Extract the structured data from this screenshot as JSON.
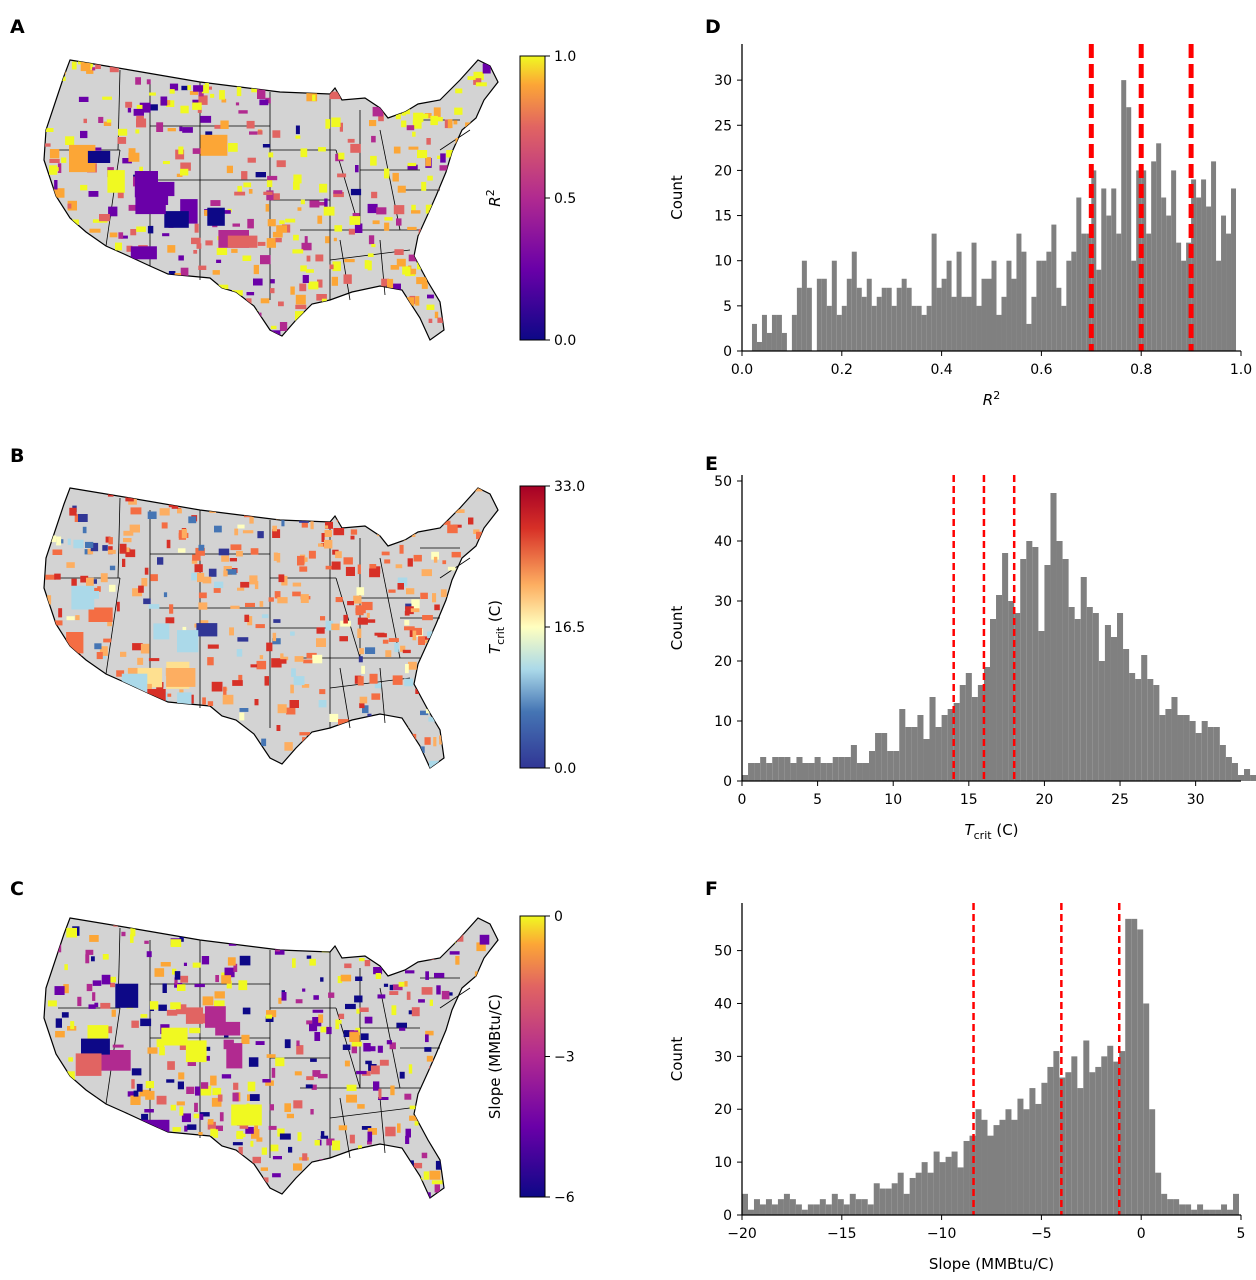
{
  "panels": {
    "A": {
      "letter": "A",
      "colorbar_label": "R²",
      "ticks": [
        "1.0",
        "0.5",
        "0.0"
      ],
      "cmap": "plasma",
      "vmin": 0.0,
      "vmax": 1.0
    },
    "B": {
      "letter": "B",
      "colorbar_label": "T_crit (C)",
      "ticks": [
        "33.0",
        "16.5",
        "0.0"
      ],
      "cmap": "RdYlBu_r",
      "vmin": 0.0,
      "vmax": 33.0
    },
    "C": {
      "letter": "C",
      "colorbar_label": "Slope (MMBtu/C)",
      "ticks": [
        "0",
        "−3",
        "−6"
      ],
      "cmap": "plasma",
      "vmin": -6,
      "vmax": 0
    }
  },
  "colors": {
    "bars": "#808080",
    "lines": "#ff0000",
    "land": "#d3d3d3",
    "border": "#000000"
  },
  "chart_data": [
    {
      "panel": "D",
      "type": "bar",
      "xlabel": "R²",
      "ylabel": "Count",
      "xlim": [
        0.0,
        1.0
      ],
      "ylim": [
        0,
        34
      ],
      "xticks": [
        "0.0",
        "0.2",
        "0.4",
        "0.6",
        "0.8",
        "1.0"
      ],
      "yticks": [
        "0",
        "5",
        "10",
        "15",
        "20",
        "25",
        "30"
      ],
      "bin_start": 0.0,
      "bin_width": 0.01,
      "counts": [
        0,
        0,
        3,
        1,
        4,
        2,
        4,
        4,
        2,
        0,
        4,
        7,
        10,
        7,
        0,
        8,
        8,
        5,
        10,
        4,
        5,
        8,
        11,
        7,
        6,
        8,
        5,
        6,
        7,
        7,
        5,
        7,
        8,
        7,
        5,
        5,
        4,
        5,
        13,
        7,
        8,
        10,
        6,
        11,
        6,
        6,
        12,
        5,
        8,
        8,
        10,
        4,
        6,
        10,
        8,
        13,
        11,
        3,
        6,
        10,
        10,
        11,
        14,
        7,
        5,
        10,
        11,
        17,
        13,
        13,
        20,
        9,
        18,
        15,
        18,
        13,
        30,
        27,
        10,
        20,
        20,
        13,
        21,
        23,
        17,
        15,
        20,
        12,
        10,
        12,
        19,
        17,
        19,
        16,
        21,
        10,
        15,
        13,
        18,
        0
      ],
      "vlines": [
        0.7,
        0.8,
        0.9
      ],
      "vline_style": "thick"
    },
    {
      "panel": "E",
      "type": "bar",
      "xlabel": "T_crit (C)",
      "ylabel": "Count",
      "xlim": [
        0,
        33
      ],
      "ylim": [
        0,
        51
      ],
      "xticks": [
        "0",
        "5",
        "10",
        "15",
        "20",
        "25",
        "30"
      ],
      "yticks": [
        "0",
        "10",
        "20",
        "30",
        "40",
        "50"
      ],
      "bin_start": 0,
      "bin_width": 0.4,
      "counts": [
        1,
        3,
        3,
        4,
        3,
        4,
        4,
        4,
        3,
        4,
        3,
        3,
        4,
        3,
        3,
        4,
        4,
        4,
        6,
        3,
        3,
        5,
        8,
        8,
        5,
        5,
        12,
        9,
        9,
        11,
        7,
        14,
        9,
        11,
        12,
        13,
        16,
        18,
        14,
        16,
        19,
        27,
        31,
        38,
        30,
        28,
        37,
        40,
        39,
        25,
        36,
        48,
        40,
        37,
        29,
        27,
        34,
        29,
        28,
        20,
        26,
        24,
        28,
        22,
        18,
        17,
        21,
        17,
        16,
        11,
        12,
        14,
        11,
        11,
        10,
        8,
        10,
        9,
        9,
        6,
        4,
        3,
        1,
        2,
        1,
        1,
        0,
        0,
        0,
        0
      ],
      "vlines": [
        14,
        16,
        18
      ],
      "vline_style": "thin"
    },
    {
      "panel": "F",
      "type": "bar",
      "xlabel": "Slope (MMBtu/C)",
      "ylabel": "Count",
      "xlim": [
        -20,
        5
      ],
      "ylim": [
        0,
        59
      ],
      "xticks": [
        "−20",
        "−15",
        "−10",
        "−5",
        "0",
        "5"
      ],
      "yticks": [
        "0",
        "10",
        "20",
        "30",
        "40",
        "50"
      ],
      "bin_start": -20,
      "bin_width": 0.3,
      "counts": [
        4,
        1,
        3,
        2,
        3,
        2,
        3,
        4,
        3,
        2,
        1,
        2,
        2,
        3,
        2,
        4,
        3,
        2,
        4,
        3,
        3,
        2,
        6,
        5,
        5,
        6,
        8,
        4,
        7,
        8,
        10,
        8,
        12,
        10,
        11,
        12,
        9,
        14,
        15,
        20,
        18,
        15,
        17,
        18,
        20,
        18,
        22,
        20,
        24,
        21,
        25,
        28,
        31,
        26,
        27,
        30,
        24,
        33,
        27,
        28,
        30,
        32,
        29,
        31,
        56,
        56,
        54,
        40,
        20,
        8,
        4,
        3,
        3,
        2,
        2,
        1,
        2,
        1,
        1,
        1,
        2,
        1,
        4
      ],
      "vlines": [
        -8.4,
        -4.0,
        -1.1
      ],
      "vline_style": "thin"
    }
  ]
}
